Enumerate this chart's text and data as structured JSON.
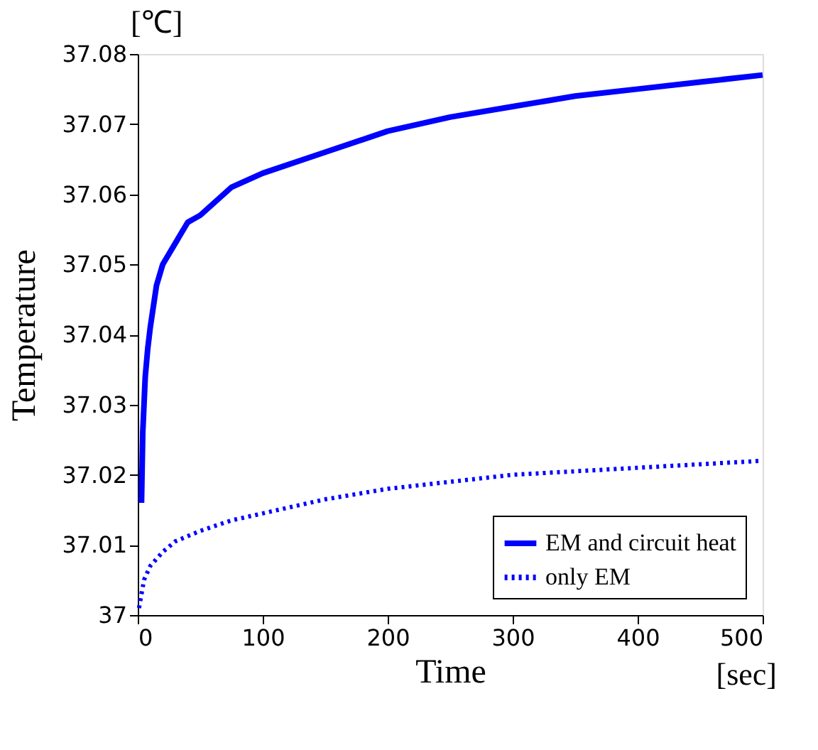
{
  "chart_data": {
    "type": "line",
    "xlabel": "Time",
    "ylabel": "Temperature",
    "annotations": [
      "[℃]",
      "[sec]"
    ],
    "xlim": [
      0,
      500
    ],
    "xticks": [
      0,
      100,
      200,
      300,
      400,
      500
    ],
    "ylim": [
      37,
      37.08
    ],
    "yticks": [
      37,
      37.01,
      37.02,
      37.03,
      37.04,
      37.05,
      37.06,
      37.07,
      37.08
    ],
    "grid": false,
    "legend": "bottom right",
    "marker": "none",
    "series": [
      {
        "name": "EM and circuit heat",
        "color": "#0000ff",
        "line_style": "solid",
        "x": [
          3,
          4,
          6,
          8,
          10,
          15,
          20,
          30,
          40,
          50,
          75,
          100,
          150,
          200,
          250,
          300,
          350,
          400,
          450,
          500
        ],
        "values": [
          37.016,
          37.026,
          37.034,
          37.038,
          37.041,
          37.047,
          37.05,
          37.053,
          37.056,
          37.057,
          37.061,
          37.063,
          37.066,
          37.069,
          37.071,
          37.0725,
          37.074,
          37.075,
          37.076,
          37.077
        ]
      },
      {
        "name": "only EM",
        "color": "#0000ff",
        "line_style": "dotted",
        "x": [
          1,
          3,
          5,
          10,
          20,
          30,
          50,
          75,
          100,
          150,
          200,
          250,
          300,
          350,
          400,
          450,
          500
        ],
        "values": [
          37.001,
          37.003,
          37.005,
          37.007,
          37.009,
          37.0105,
          37.012,
          37.0135,
          37.0145,
          37.0165,
          37.018,
          37.019,
          37.02,
          37.0205,
          37.021,
          37.0215,
          37.022
        ]
      }
    ]
  }
}
